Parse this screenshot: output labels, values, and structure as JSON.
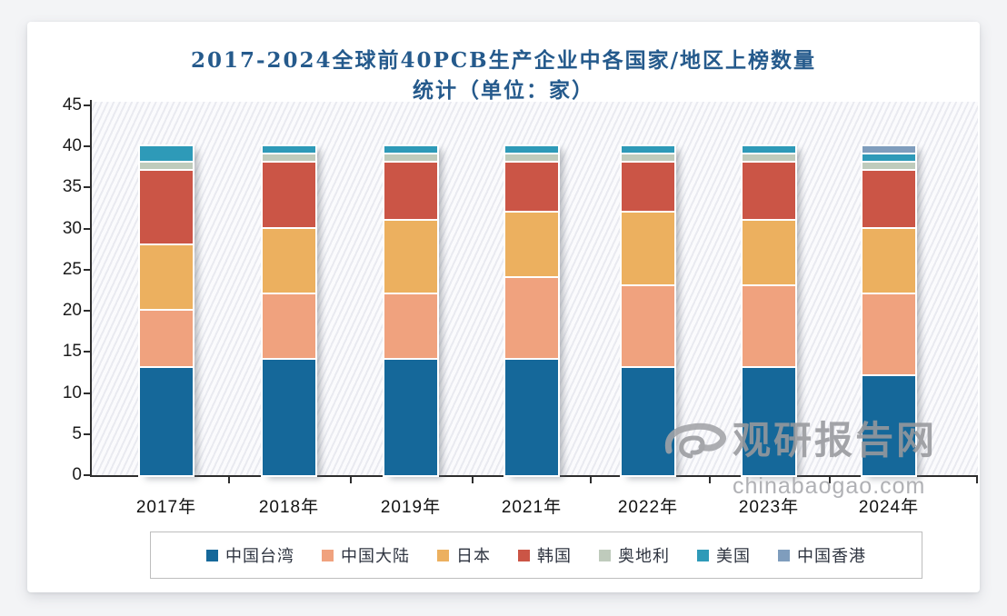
{
  "page": {
    "watermark": {
      "name": "观研报告网",
      "domain": "chinabaogao.com"
    }
  },
  "chart_data": {
    "type": "bar",
    "variant": "stacked-vertical",
    "title_line1": "2017-2024全球前40PCB生产企业中各国家/地区上榜数量",
    "title_line2": "统计（单位：家）",
    "title_full": "2017-2024全球前40PCB生产企业中各国家/地区上榜数量统计（单位：家）",
    "categories": [
      "2017年",
      "2018年",
      "2019年",
      "2021年",
      "2022年",
      "2023年",
      "2024年"
    ],
    "series": [
      {
        "key": "taiwan-china",
        "name": "中国台湾",
        "color": "#15689a",
        "values": [
          13,
          14,
          14,
          14,
          13,
          13,
          12
        ]
      },
      {
        "key": "mainland-china",
        "name": "中国大陆",
        "color": "#f0a27e",
        "values": [
          7,
          8,
          8,
          10,
          10,
          10,
          10
        ]
      },
      {
        "key": "japan",
        "name": "日本",
        "color": "#ecb05f",
        "values": [
          8,
          8,
          9,
          8,
          9,
          8,
          8
        ]
      },
      {
        "key": "korea",
        "name": "韩国",
        "color": "#cb5546",
        "values": [
          9,
          8,
          7,
          6,
          6,
          7,
          7
        ]
      },
      {
        "key": "austria",
        "name": "奥地利",
        "color": "#bfcbbc",
        "values": [
          1,
          1,
          1,
          1,
          1,
          1,
          1
        ]
      },
      {
        "key": "usa",
        "name": "美国",
        "color": "#2e9ab8",
        "values": [
          2,
          1,
          1,
          1,
          1,
          1,
          1
        ]
      },
      {
        "key": "hong-kong-china",
        "name": "中国香港",
        "color": "#7f9dbd",
        "values": [
          0,
          0,
          0,
          0,
          0,
          0,
          1
        ]
      }
    ],
    "totals_per_year": [
      40,
      40,
      40,
      40,
      40,
      40,
      40
    ],
    "y_axis": {
      "min": 0,
      "max": 45,
      "step": 5
    },
    "grid": "hatched-background-no-gridlines",
    "legend_position": "bottom"
  }
}
